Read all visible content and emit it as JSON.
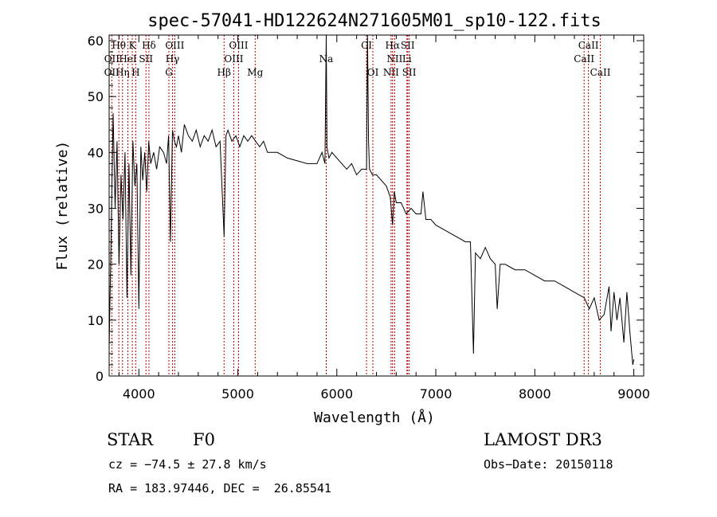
{
  "chart_data": {
    "type": "line",
    "title": "spec-57041-HD122624N271605M01_sp10-122.fits",
    "xlabel": "Wavelength (Å)",
    "ylabel": "Flux (relative)",
    "xlim": [
      3700,
      9100
    ],
    "ylim": [
      0,
      61
    ],
    "xticks": [
      4000,
      5000,
      6000,
      7000,
      8000,
      9000
    ],
    "yticks": [
      0,
      10,
      20,
      30,
      40,
      50,
      60
    ],
    "grid": false,
    "series": [
      {
        "x": [
          3700,
          3720,
          3740,
          3760,
          3780,
          3800,
          3820,
          3840,
          3860,
          3880,
          3900,
          3920,
          3940,
          3960,
          3980,
          4000,
          4020,
          4040,
          4060,
          4080,
          4100,
          4120,
          4150,
          4180,
          4210,
          4250,
          4280,
          4300,
          4320,
          4340,
          4360,
          4380,
          4400,
          4430,
          4460,
          4500,
          4540,
          4580,
          4620,
          4660,
          4700,
          4740,
          4780,
          4820,
          4861,
          4880,
          4900,
          4940,
          4980,
          5020,
          5060,
          5100,
          5140,
          5180,
          5220,
          5260,
          5300,
          5400,
          5500,
          5600,
          5700,
          5800,
          5850,
          5880,
          5893,
          5900,
          5920,
          5950,
          6000,
          6050,
          6100,
          6150,
          6200,
          6250,
          6300,
          6310,
          6320,
          6330,
          6360,
          6400,
          6450,
          6500,
          6540,
          6563,
          6580,
          6600,
          6650,
          6700,
          6750,
          6800,
          6850,
          6870,
          6900,
          6950,
          7000,
          7100,
          7200,
          7300,
          7350,
          7380,
          7400,
          7450,
          7500,
          7550,
          7600,
          7620,
          7650,
          7700,
          7800,
          7900,
          8000,
          8100,
          8200,
          8300,
          8400,
          8500,
          8550,
          8600,
          8650,
          8700,
          8750,
          8770,
          8800,
          8830,
          8860,
          8900,
          8930,
          8960,
          8990,
          9000
        ],
        "y": [
          5,
          25,
          47,
          30,
          42,
          20,
          36,
          28,
          40,
          14,
          38,
          18,
          42,
          34,
          38,
          12,
          41,
          35,
          40,
          33,
          42,
          38,
          40,
          37,
          41,
          40,
          38,
          43,
          24,
          44,
          42,
          41,
          43,
          40,
          45,
          43,
          42,
          44,
          41,
          43,
          42,
          44,
          41,
          42,
          25,
          43,
          44,
          42,
          43,
          41,
          43,
          42,
          43,
          42,
          41,
          42,
          40,
          40,
          39,
          38.5,
          38,
          38,
          40,
          38,
          61,
          41,
          39,
          40,
          39,
          38,
          37,
          38,
          36,
          37,
          37,
          61,
          42,
          37,
          36,
          36,
          35,
          34,
          32,
          27,
          33,
          31,
          31,
          29,
          30,
          29,
          29,
          33,
          28,
          28,
          27,
          26,
          25,
          24,
          24,
          4,
          22,
          21,
          23,
          21,
          20,
          12,
          20,
          20,
          19,
          19,
          18,
          17,
          17,
          16,
          15,
          14,
          12,
          14,
          10,
          11,
          16,
          8,
          15,
          10,
          14,
          6,
          15,
          8,
          2,
          3
        ]
      }
    ],
    "lines_row1": [
      {
        "label": "Hθ",
        "x": 3798
      },
      {
        "label": "K",
        "x": 3934
      },
      {
        "label": "Hδ",
        "x": 4102
      },
      {
        "label": "OIII",
        "x": 4363
      },
      {
        "label": "OIII",
        "x": 5007
      },
      {
        "label": "CI",
        "x": 6300
      },
      {
        "label": "Hα",
        "x": 6563
      },
      {
        "label": "SII",
        "x": 6716
      },
      {
        "label": "CaII",
        "x": 8542
      }
    ],
    "lines_row2": [
      {
        "label": "OII",
        "x": 3727
      },
      {
        "label": "HeI",
        "x": 3889
      },
      {
        "label": "SII",
        "x": 4072
      },
      {
        "label": "Hγ",
        "x": 4340
      },
      {
        "label": "OIII",
        "x": 4959
      },
      {
        "label": "Na",
        "x": 5893
      },
      {
        "label": "NII",
        "x": 6584
      },
      {
        "label": "Li",
        "x": 6708
      },
      {
        "label": "CaII",
        "x": 8498
      }
    ],
    "lines_row3": [
      {
        "label": "OII",
        "x": 3726
      },
      {
        "label": "Hη",
        "x": 3835
      },
      {
        "label": "H",
        "x": 3968
      },
      {
        "label": "G",
        "x": 4304
      },
      {
        "label": "Hβ",
        "x": 4861
      },
      {
        "label": "Mg",
        "x": 5175
      },
      {
        "label": "OI",
        "x": 6364
      },
      {
        "label": "NII",
        "x": 6548
      },
      {
        "label": "SII",
        "x": 6731
      },
      {
        "label": "CaII",
        "x": 8662
      }
    ]
  },
  "info": {
    "class_label": "STAR",
    "subclass": "F0",
    "survey": "LAMOST DR3",
    "redshift": "cz = −74.5 ± 27.8 km/s",
    "obs_date": "Obs−Date: 20150118",
    "coords": "RA = 183.97446, DEC =  26.85541"
  },
  "colors": {
    "spectrum": "#000000",
    "line_markers": "#c00000",
    "axes": "#000000"
  }
}
